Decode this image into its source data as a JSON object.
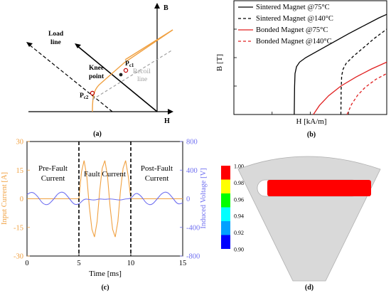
{
  "panels": {
    "a": {
      "label": "(a)",
      "axis_b": "B",
      "axis_h": "H",
      "load_line": [
        "Load",
        "line"
      ],
      "knee_point": [
        "Knee",
        "point"
      ],
      "recoil_line": [
        "Recoil",
        "line"
      ],
      "pc1": {
        "main": "P",
        "sub": "c1"
      },
      "pc2": {
        "main": "P",
        "sub": "c2"
      },
      "colors": {
        "curve": "#f0a040",
        "recoil": "#a0a0a0",
        "axes": "#000000"
      }
    },
    "b": {
      "label": "(b)"
    },
    "c": {
      "label": "(c)"
    },
    "d": {
      "label": "(d)"
    }
  },
  "chart_data": [
    {
      "id": "b",
      "type": "line",
      "xlabel": "H [kA/m]",
      "ylabel": "B [T]",
      "grid": false,
      "legend_position": "top-left",
      "series": [
        {
          "name": "Sintered Magnet @75°C",
          "color": "#000000",
          "dash": "solid",
          "x": [
            0.395,
            0.397,
            0.4,
            0.41,
            0.43,
            0.47,
            0.55,
            0.65,
            0.75,
            0.85,
            0.95,
            1.0
          ],
          "y": [
            0.0,
            0.25,
            0.36,
            0.42,
            0.46,
            0.5,
            0.56,
            0.635,
            0.71,
            0.78,
            0.85,
            0.88
          ]
        },
        {
          "name": "Sintered Magnet @140°C",
          "color": "#000000",
          "dash": "dashed",
          "x": [
            0.7,
            0.702,
            0.705,
            0.715,
            0.735,
            0.78,
            0.85,
            0.92,
            1.0
          ],
          "y": [
            0.0,
            0.22,
            0.34,
            0.4,
            0.45,
            0.51,
            0.59,
            0.67,
            0.75
          ]
        },
        {
          "name": "Bonded Magnet @75°C",
          "color": "#e02020",
          "dash": "solid",
          "x": [
            0.52,
            0.56,
            0.62,
            0.7,
            0.8,
            0.9,
            1.0
          ],
          "y": [
            0.0,
            0.08,
            0.165,
            0.25,
            0.33,
            0.4,
            0.46
          ]
        },
        {
          "name": "Bonded Magnet @140°C",
          "color": "#e02020",
          "dash": "dashed",
          "x": [
            0.74,
            0.77,
            0.81,
            0.86,
            0.93,
            1.0
          ],
          "y": [
            0.0,
            0.09,
            0.17,
            0.24,
            0.31,
            0.36
          ]
        }
      ]
    },
    {
      "id": "c",
      "type": "line",
      "xlabel": "Time [ms]",
      "ylabel_left": "Input Current [A]",
      "ylabel_right": "Induced Voltage [V]",
      "xlim": [
        0,
        15
      ],
      "ylim_left": [
        -30,
        30
      ],
      "ylim_right": [
        -800,
        800
      ],
      "xticks": [
        0,
        5,
        10,
        15
      ],
      "yticks_left": [
        -30,
        -15,
        0,
        15,
        30
      ],
      "yticks_right": [
        -800,
        -400,
        0,
        400,
        800
      ],
      "colors": {
        "left_axis": "#f0a040",
        "right_axis": "#7070f0"
      },
      "annotations": [
        {
          "lines": [
            "Pre-Fault",
            "Current"
          ]
        },
        {
          "lines": [
            "Fault Current"
          ]
        },
        {
          "lines": [
            "Post-Fault",
            "Current"
          ]
        }
      ],
      "vlines": [
        5,
        10
      ],
      "series": [
        {
          "axis": "left",
          "color": "#f0a040",
          "x": [
            0,
            5,
            5.25,
            5.5,
            5.75,
            6.0,
            6.25,
            6.5,
            6.75,
            7.0,
            7.25,
            7.5,
            7.75,
            8.0,
            8.25,
            8.5,
            8.75,
            9.0,
            9.25,
            9.5,
            9.75,
            10,
            15
          ],
          "y": [
            0,
            0,
            14,
            20,
            12,
            -4,
            -16,
            -20,
            -12,
            4,
            16,
            20,
            12,
            -4,
            -16,
            -20,
            -12,
            4,
            16,
            20,
            12,
            0,
            0
          ]
        },
        {
          "axis": "right",
          "color": "#7070f0",
          "x": [
            0,
            0.5,
            1.0,
            1.5,
            2.0,
            2.5,
            3.0,
            3.5,
            4.0,
            4.5,
            5.0,
            5.5,
            6.0,
            6.5,
            7.0,
            7.5,
            8.0,
            8.5,
            9.0,
            9.5,
            10.0,
            10.5,
            11.0,
            11.5,
            12.0,
            12.5,
            13.0,
            13.5,
            14.0,
            14.5,
            15.0
          ],
          "y": [
            60,
            100,
            40,
            -70,
            -90,
            -20,
            80,
            100,
            20,
            -80,
            -80,
            0,
            -10,
            -20,
            0,
            -10,
            0,
            -10,
            -20,
            0,
            0,
            90,
            40,
            -70,
            -90,
            -10,
            80,
            100,
            20,
            -80,
            -60
          ]
        }
      ]
    },
    {
      "id": "d",
      "type": "heatmap",
      "colorbar_ticks": [
        "1.00",
        "0.98",
        "0.96",
        "0.94",
        "0.92",
        "0.90"
      ],
      "colorbar_colors": [
        "#ff0000",
        "#ffff00",
        "#00ff00",
        "#00ffff",
        "#00a0ff",
        "#0000ff"
      ],
      "magnet_value": 1.0,
      "colors": {
        "core": "#d9d9d9",
        "magnet": "#ff0000",
        "slot": "#ffffff"
      }
    }
  ]
}
